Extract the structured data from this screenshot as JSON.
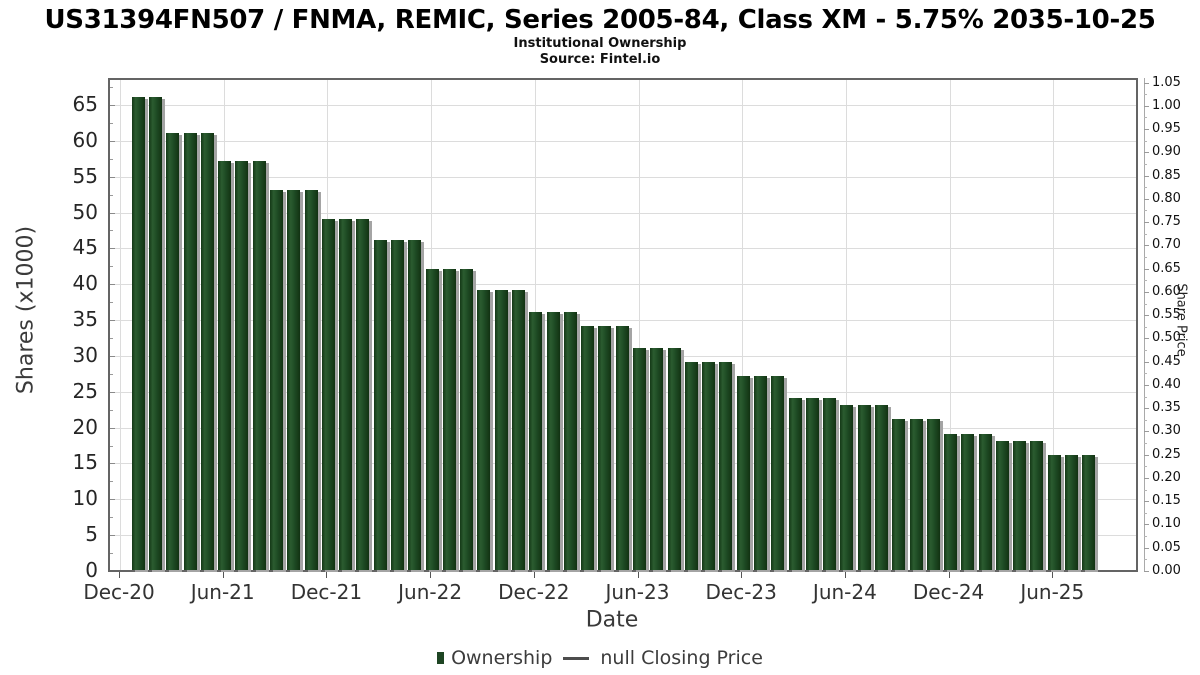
{
  "header": {
    "title": "US31394FN507 / FNMA, REMIC, Series 2005-84, Class XM - 5.75% 2035-10-25",
    "subtitle": "Institutional Ownership",
    "source": "Source: Fintel.io"
  },
  "chart_data": {
    "type": "bar",
    "title": "US31394FN507 / FNMA, REMIC, Series 2005-84, Class XM - 5.75% 2035-10-25",
    "subtitle": "Institutional Ownership",
    "source": "Source: Fintel.io",
    "xlabel": "Date",
    "ylabel_left": "Shares (x1000)",
    "ylabel_right": "Share Price",
    "values_unit": "thousands of shares",
    "categories": [
      "Jan-21",
      "Feb-21",
      "Mar-21",
      "Apr-21",
      "May-21",
      "Jun-21",
      "Jul-21",
      "Aug-21",
      "Sep-21",
      "Oct-21",
      "Nov-21",
      "Dec-21",
      "Jan-22",
      "Feb-22",
      "Mar-22",
      "Apr-22",
      "May-22",
      "Jun-22",
      "Jul-22",
      "Aug-22",
      "Sep-22",
      "Oct-22",
      "Nov-22",
      "Dec-22",
      "Jan-23",
      "Feb-23",
      "Mar-23",
      "Apr-23",
      "May-23",
      "Jun-23",
      "Jul-23",
      "Aug-23",
      "Sep-23",
      "Oct-23",
      "Nov-23",
      "Dec-23",
      "Jan-24",
      "Feb-24",
      "Mar-24",
      "Apr-24",
      "May-24",
      "Jun-24",
      "Jul-24",
      "Aug-24",
      "Sep-24",
      "Oct-24",
      "Nov-24",
      "Dec-24",
      "Jan-25",
      "Feb-25",
      "Mar-25",
      "Apr-25",
      "May-25",
      "Jun-25",
      "Jul-25",
      "Aug-25"
    ],
    "series": [
      {
        "name": "Ownership",
        "values": [
          66,
          66,
          61,
          61,
          61,
          57,
          57,
          57,
          53,
          53,
          53,
          49,
          49,
          49,
          46,
          46,
          46,
          42,
          42,
          42,
          39,
          39,
          39,
          36,
          36,
          36,
          34,
          34,
          34,
          31,
          31,
          31,
          29,
          29,
          29,
          27,
          27,
          27,
          24,
          24,
          24,
          23,
          23,
          23,
          21,
          21,
          21,
          19,
          19,
          19,
          18,
          18,
          18,
          16,
          16,
          16
        ]
      }
    ],
    "price_series": {
      "name": "null Closing Price",
      "values": []
    },
    "x_tick_labels": [
      "Dec-20",
      "Jun-21",
      "Dec-21",
      "Jun-22",
      "Dec-22",
      "Jun-23",
      "Dec-23",
      "Jun-24",
      "Dec-24",
      "Jun-25"
    ],
    "yticks_left": [
      0,
      5,
      10,
      15,
      20,
      25,
      30,
      35,
      40,
      45,
      50,
      55,
      60,
      65
    ],
    "ylim_left": [
      0,
      69
    ],
    "yticks_right_min": 0.0,
    "yticks_right_max": 1.05,
    "yticks_right_step": 0.05,
    "ylim_right": [
      0,
      1.06
    ],
    "grid": true,
    "legend_position": "bottom",
    "bar_color": "#1e4b24",
    "bar_shadow_color": "#a4a4a4",
    "grid_color": "#dcdcdc"
  },
  "legend": {
    "ownership_label": "Ownership",
    "price_label": "null Closing Price"
  }
}
